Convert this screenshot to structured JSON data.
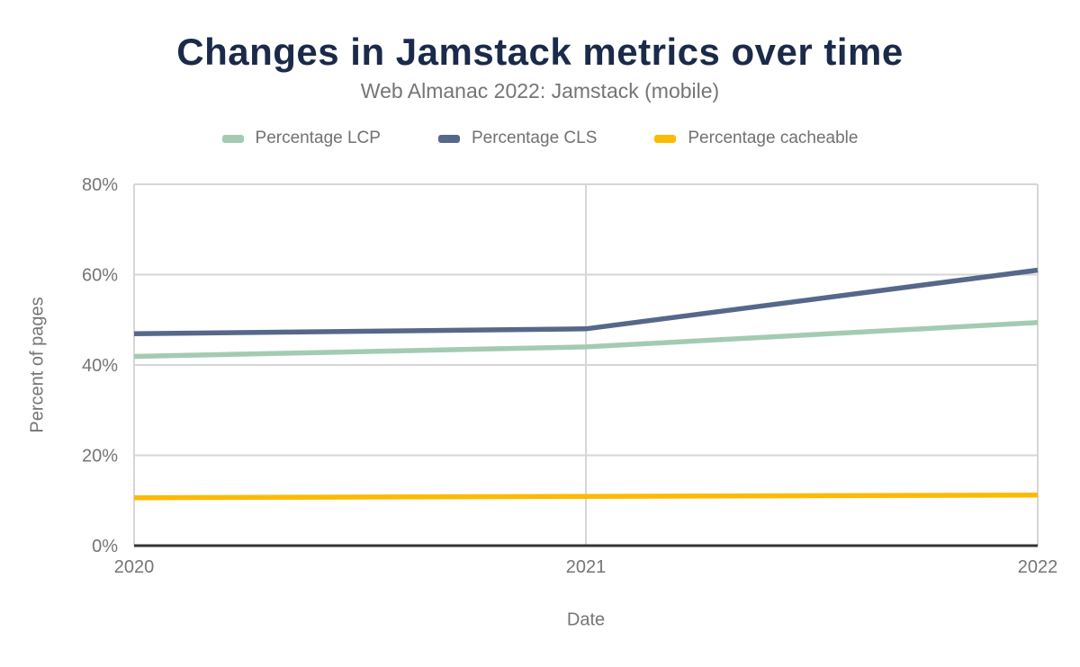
{
  "theme": {
    "background": "#ffffff",
    "title_color": "#1b2a49",
    "text_gray": "#757575",
    "grid_color": "#d6d6d6",
    "axis_line_color": "#333333"
  },
  "chart_data": {
    "type": "line",
    "title": "Changes in Jamstack metrics over time",
    "subtitle": "Web Almanac 2022: Jamstack (mobile)",
    "xlabel": "Date",
    "ylabel": "Percent of pages",
    "categories": [
      "2020",
      "2021",
      "2022"
    ],
    "y_ticks": [
      {
        "value": 0,
        "label": "0%"
      },
      {
        "value": 20,
        "label": "20%"
      },
      {
        "value": 40,
        "label": "40%"
      },
      {
        "value": 60,
        "label": "60%"
      },
      {
        "value": 80,
        "label": "80%"
      }
    ],
    "ylim": [
      0,
      80
    ],
    "grid": true,
    "legend_position": "top",
    "series": [
      {
        "name": "Percentage LCP",
        "color": "#a3cbb3",
        "values": [
          41.9,
          44.0,
          49.4
        ]
      },
      {
        "name": "Percentage CLS",
        "color": "#56688a",
        "values": [
          46.9,
          48.0,
          61.0
        ]
      },
      {
        "name": "Percentage cacheable",
        "color": "#fcba03",
        "values": [
          10.6,
          10.9,
          11.2
        ]
      }
    ]
  }
}
